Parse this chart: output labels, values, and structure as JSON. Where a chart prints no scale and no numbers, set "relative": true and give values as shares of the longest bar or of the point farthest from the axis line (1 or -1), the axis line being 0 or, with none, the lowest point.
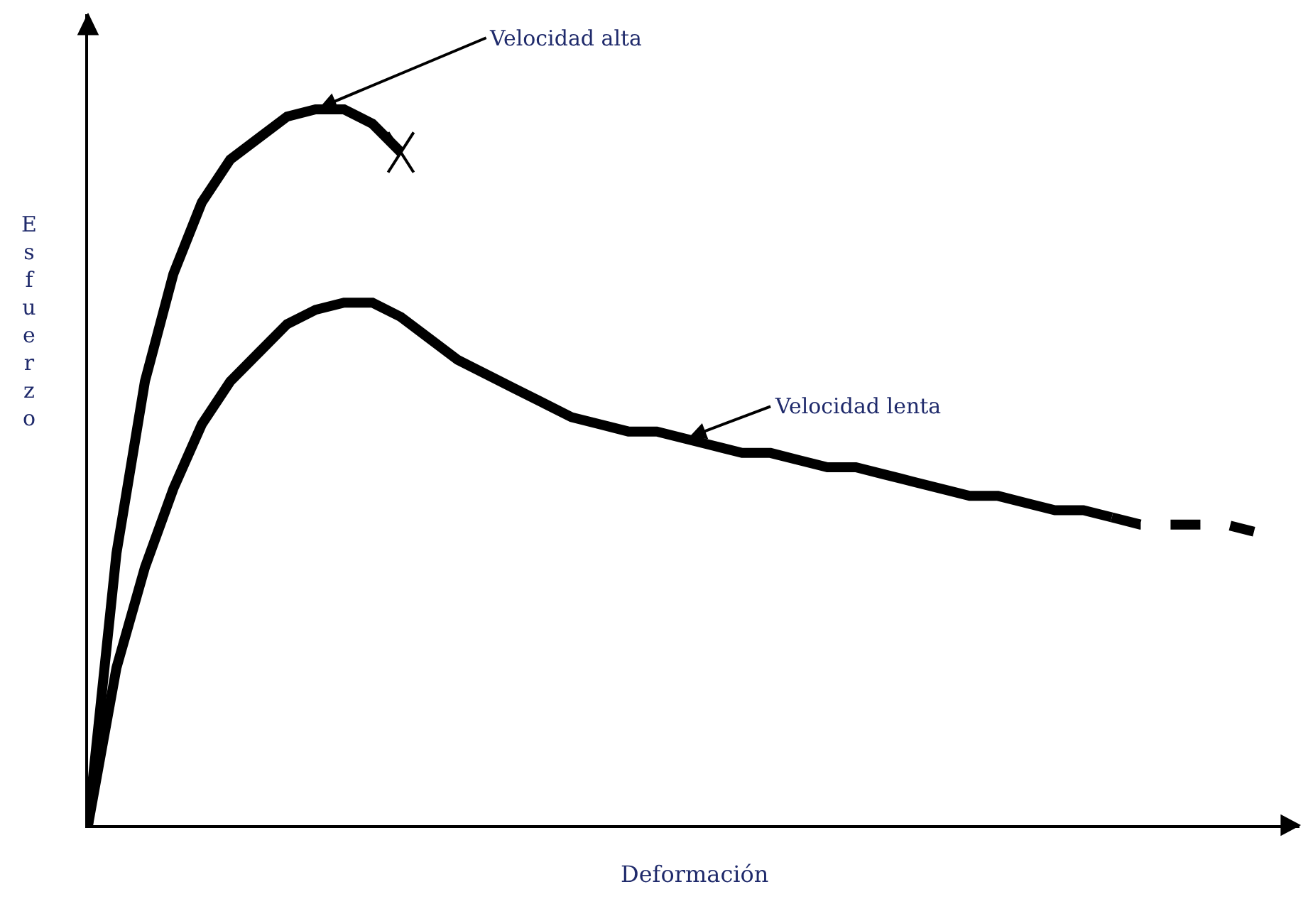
{
  "chart_data": {
    "type": "line",
    "relative": true,
    "xlabel": "Deformación",
    "ylabel": "Esfuerzo",
    "legend": false,
    "categories": [
      null,
      null,
      null,
      null,
      null,
      null,
      null,
      null,
      null,
      null,
      null,
      null,
      null,
      null,
      null,
      null,
      null,
      null,
      null,
      null,
      null,
      null,
      null,
      null,
      null,
      null,
      null,
      null,
      null,
      null,
      null,
      null,
      null,
      null,
      null,
      null,
      null,
      null,
      null,
      null,
      null,
      null
    ],
    "series": [
      {
        "name": "Velocidad alta",
        "color": "#000000",
        "line_style": "solid",
        "marker": "none",
        "values": [
          0,
          0.38,
          0.62,
          0.77,
          0.87,
          0.93,
          0.96,
          0.99,
          1.0,
          1.0,
          0.98,
          0.94,
          null,
          null,
          null,
          null,
          null,
          null,
          null,
          null,
          null,
          null,
          null,
          null,
          null,
          null,
          null,
          null,
          null,
          null,
          null,
          null,
          null,
          null,
          null,
          null,
          null,
          null,
          null,
          null,
          null,
          null
        ]
      },
      {
        "name": "Velocidad lenta",
        "color": "#000000",
        "line_style": "solid",
        "marker": "none",
        "values": [
          0,
          0.22,
          0.36,
          0.47,
          0.56,
          0.62,
          0.66,
          0.7,
          0.72,
          0.73,
          0.73,
          0.71,
          0.68,
          0.65,
          0.63,
          0.61,
          0.59,
          0.57,
          0.56,
          0.55,
          0.55,
          0.54,
          0.53,
          0.52,
          0.52,
          0.51,
          0.5,
          0.5,
          0.49,
          0.48,
          0.47,
          0.46,
          0.46,
          0.45,
          0.44,
          0.44,
          0.43,
          null,
          null,
          null,
          null,
          null
        ]
      },
      {
        "color": "#000000",
        "line_style": "dashed",
        "marker": "none",
        "values": [
          null,
          null,
          null,
          null,
          null,
          null,
          null,
          null,
          null,
          null,
          null,
          null,
          null,
          null,
          null,
          null,
          null,
          null,
          null,
          null,
          null,
          null,
          null,
          null,
          null,
          null,
          null,
          null,
          null,
          null,
          null,
          null,
          null,
          null,
          null,
          null,
          0.43,
          0.42,
          0.42,
          0.42,
          0.42,
          0.41
        ]
      }
    ]
  }
}
